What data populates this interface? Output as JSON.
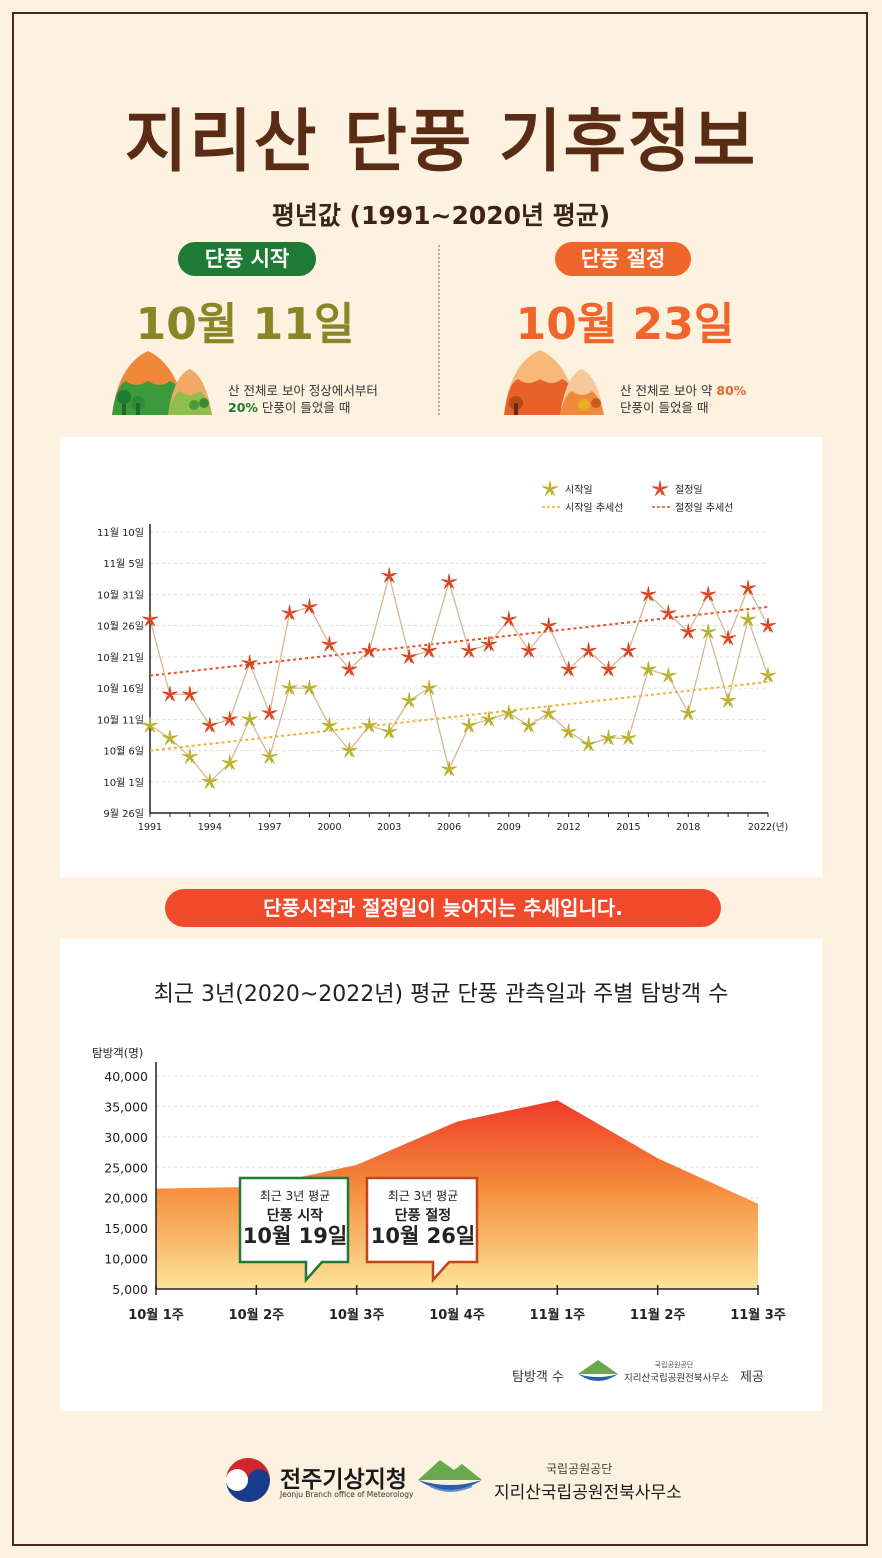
{
  "page": {
    "title": "지리산 단풍 기후정보",
    "subtitle": "평년값 (1991~2020년 평균)",
    "start": {
      "badge": "단풍 시작",
      "date": "10월 11일",
      "desc_line1": "산 전체로 보아 정상에서부터",
      "desc_pct": "20%",
      "desc_line2": " 단풍이 들었을 때"
    },
    "peak": {
      "badge": "단풍 절정",
      "date": "10월 23일",
      "desc_line1": "산 전체로 보아 약 ",
      "desc_pct": "80%",
      "desc_line2": "단풍이 들었을 때"
    },
    "banner": "단풍시작과 절정일이 늦어지는 추세입니다.",
    "chart2_title": "최근 3년(2020~2022년) 평균 단풍 관측일과 주별 탐방객 수",
    "callout_start": {
      "title": "최근 3년 평균",
      "label": "단풍 시작",
      "date": "10월 19일"
    },
    "callout_peak": {
      "title": "최근 3년 평균",
      "label": "단풍 절정",
      "date": "10월 26일"
    },
    "credit_left": "탐방객 수",
    "credit_org_small": "국립공원공단",
    "credit_org": "지리산국립공원전북사무소",
    "credit_right": "제공",
    "footer_kma": "전주기상지청",
    "footer_kma_en": "Jeonju Branch office of Meteorology",
    "footer_park_small": "국립공원공단",
    "footer_park": "지리산국립공원전북사무소",
    "colors": {
      "start": "#8a8628",
      "peak": "#f0652a",
      "badge_start": "#1f7a35",
      "badge_peak": "#f0652a",
      "title": "#5a2c16"
    }
  },
  "chart_data": [
    {
      "type": "line",
      "y_ticks": [
        "11월 10일",
        "11월 5일",
        "10월 31일",
        "10월 26일",
        "10월 21일",
        "10월 16일",
        "10월 11일",
        "10월 6일",
        "10월 1일",
        "9월 26일"
      ],
      "x_ticks": [
        "1991",
        "1994",
        "1997",
        "2000",
        "2003",
        "2006",
        "2009",
        "2012",
        "2015",
        "2018",
        "2022(년)"
      ],
      "legend": [
        "시작일",
        "절정일",
        "시작일 추세선",
        "절정일 추세선"
      ],
      "x": [
        1991,
        1992,
        1993,
        1994,
        1995,
        1996,
        1997,
        1998,
        1999,
        2000,
        2001,
        2002,
        2003,
        2004,
        2005,
        2006,
        2007,
        2008,
        2009,
        2010,
        2011,
        2012,
        2013,
        2014,
        2015,
        2016,
        2017,
        2018,
        2019,
        2020,
        2021,
        2022
      ],
      "series": [
        {
          "name": "시작일",
          "values": [
            "10-10",
            "10-08",
            "10-05",
            "10-01",
            "10-04",
            "10-11",
            "10-05",
            "10-16",
            "10-16",
            "10-10",
            "10-06",
            "10-10",
            "10-09",
            "10-14",
            "10-16",
            "10-03",
            "10-10",
            "10-11",
            "10-12",
            "10-10",
            "10-12",
            "10-09",
            "10-07",
            "10-08",
            "10-08",
            "10-19",
            "10-18",
            "10-12",
            "10-25",
            "10-14",
            "10-27",
            "10-18"
          ]
        },
        {
          "name": "절정일",
          "values": [
            "10-27",
            "10-15",
            "10-15",
            "10-10",
            "10-11",
            "10-20",
            "10-12",
            "10-28",
            "10-29",
            "10-23",
            "10-19",
            "10-22",
            "11-03",
            "10-21",
            "10-22",
            "11-02",
            "10-22",
            "10-23",
            "10-27",
            "10-22",
            "10-26",
            "10-19",
            "10-22",
            "10-19",
            "10-22",
            "10-31",
            "10-28",
            "10-25",
            "10-31",
            "10-24",
            "11-01",
            "10-26"
          ]
        }
      ],
      "trend_start": [
        "10-06",
        "10-17"
      ],
      "trend_peak": [
        "10-18",
        "10-29"
      ],
      "grid": "dashed horizontal",
      "legend_position": "top-right"
    },
    {
      "type": "area",
      "ylabel": "탐방객(명)",
      "y_ticks": [
        "40,000",
        "35,000",
        "30,000",
        "25,000",
        "20,000",
        "15,000",
        "10,000",
        "5,000"
      ],
      "categories": [
        "10월 1주",
        "10월 2주",
        "10월 3주",
        "10월 4주",
        "11월 1주",
        "11월 2주",
        "11월 3주"
      ],
      "values": [
        21500,
        21800,
        25400,
        32500,
        36000,
        26500,
        19000
      ],
      "ylim": [
        5000,
        40000
      ]
    }
  ]
}
